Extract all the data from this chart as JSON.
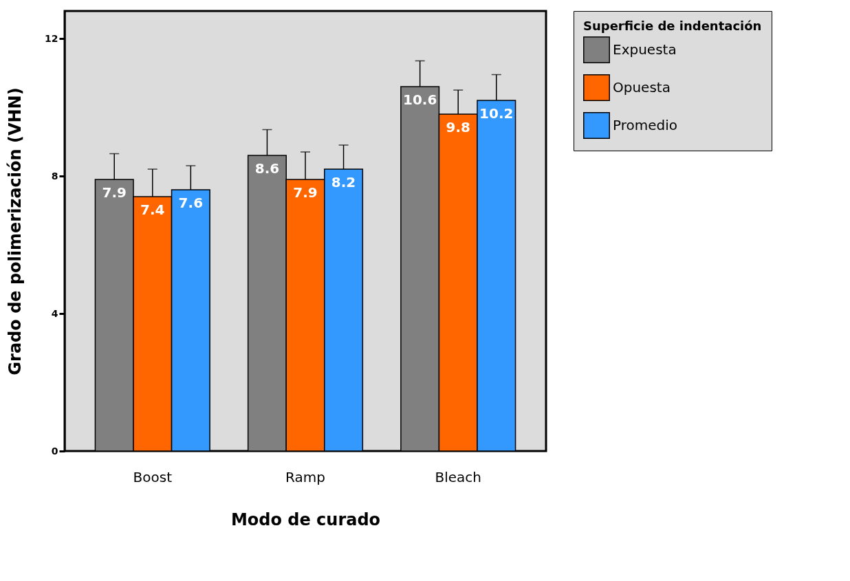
{
  "chart_data": {
    "type": "bar",
    "xlabel": "Modo de curado",
    "ylabel": "Grado de polimerización (VHN)",
    "legend_title": "Superficie de indentación",
    "legend": "right",
    "categories": [
      "Boost",
      "Ramp",
      "Bleach"
    ],
    "series": [
      {
        "name": "Expuesta",
        "color": "#808080",
        "values": [
          7.9,
          8.6,
          10.6
        ],
        "errors": [
          [
            7.9,
            8.65
          ],
          [
            8.6,
            9.35
          ],
          [
            10.6,
            11.35
          ]
        ]
      },
      {
        "name": "Opuesta",
        "color": "#ff6600",
        "values": [
          7.4,
          7.9,
          9.8
        ],
        "errors": [
          [
            7.4,
            8.2
          ],
          [
            7.9,
            8.7
          ],
          [
            9.8,
            10.5
          ]
        ]
      },
      {
        "name": "Promedio",
        "color": "#3399ff",
        "values": [
          7.6,
          8.2,
          10.2
        ],
        "errors": [
          [
            7.6,
            8.3
          ],
          [
            8.2,
            8.9
          ],
          [
            10.2,
            10.95
          ]
        ]
      }
    ],
    "ylim": [
      0,
      12.8
    ],
    "yticks": [
      0,
      4,
      8,
      12
    ],
    "data_labels": true
  }
}
